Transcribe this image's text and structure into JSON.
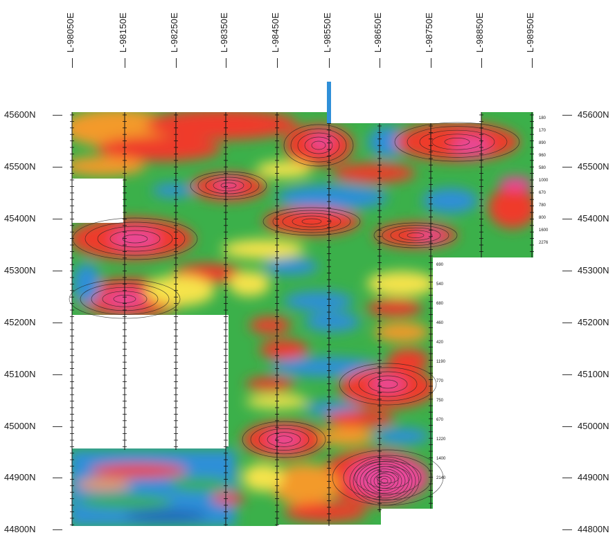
{
  "map": {
    "line_labels": [
      "L-98050E",
      "L-98150E",
      "L-98250E",
      "L-98350E",
      "L-98450E",
      "L-98550E",
      "L-98650E",
      "L-98750E",
      "L-98850E",
      "L-98950E"
    ],
    "northing_labels_left": [
      "45600N",
      "45500N",
      "45400N",
      "45300N",
      "45200N",
      "45100N",
      "45000N",
      "44900N",
      "44800N"
    ],
    "northing_labels_right": [
      "45600N",
      "45500N",
      "45400N",
      "45300N",
      "45200N",
      "45100N",
      "45000N",
      "44900N",
      "44800N"
    ],
    "station_values_upper": [
      "180",
      "170",
      "890",
      "960",
      "580",
      "1000",
      "670",
      "780",
      "800",
      "1600",
      "2276"
    ],
    "station_values_lower": [
      "690",
      "540",
      "680",
      "460",
      "420",
      "1190",
      "770",
      "750",
      "670",
      "1220",
      "1400",
      "2140"
    ],
    "colors": {
      "high": "#ef3b2c",
      "peak": "#e8489a",
      "mid": "#f5e34b",
      "orange": "#f39a2a",
      "low": "#3bb04a",
      "lowest": "#2f8fd8",
      "line": "#111111"
    }
  }
}
